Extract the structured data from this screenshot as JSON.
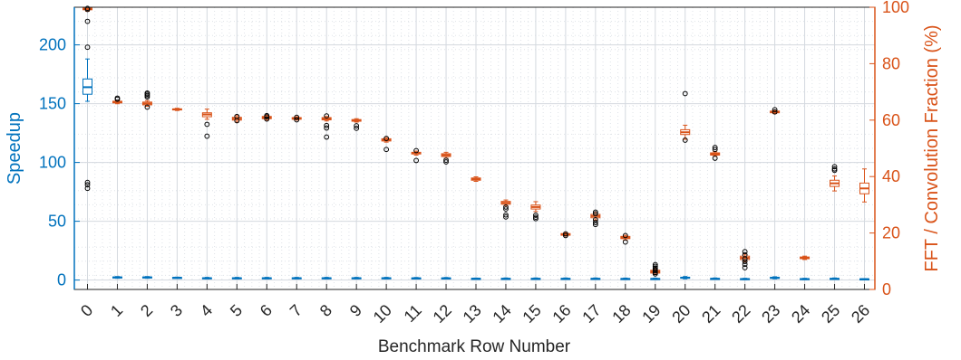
{
  "chart_data": {
    "type": "box",
    "xlabel": "Benchmark Row Number",
    "ylabel_left": "Speedup",
    "ylabel_right": "FFT / Convolution Fraction (%)",
    "categories": [
      "0",
      "1",
      "2",
      "3",
      "4",
      "5",
      "6",
      "7",
      "8",
      "9",
      "10",
      "11",
      "12",
      "13",
      "14",
      "15",
      "16",
      "17",
      "18",
      "19",
      "20",
      "21",
      "22",
      "23",
      "24",
      "25",
      "26"
    ],
    "ylim_left": [
      -8,
      232
    ],
    "ylim_right": [
      0,
      100
    ],
    "yticks_left": [
      "0",
      "50",
      "100",
      "150",
      "200"
    ],
    "yticks_right": [
      "0",
      "20",
      "40",
      "60",
      "80",
      "100"
    ],
    "grid": "major and minor",
    "colors": {
      "speedup": "#0072BD",
      "fraction": "#D95319",
      "outlier": "#000000",
      "grid": "#dfe3e8"
    },
    "series": [
      {
        "name": "Speedup",
        "axis": "left",
        "boxes": [
          {
            "x": "0",
            "min": 152,
            "q1": 158,
            "median": 164,
            "q3": 171,
            "max": 188,
            "outliers": [
              220,
              198,
              83,
              81,
              78
            ]
          },
          {
            "x": "1",
            "min": 1.5,
            "q1": 2,
            "median": 2.3,
            "q3": 2.6,
            "max": 3,
            "outliers": []
          },
          {
            "x": "2",
            "min": 1.5,
            "q1": 2,
            "median": 2.3,
            "q3": 2.6,
            "max": 3,
            "outliers": []
          },
          {
            "x": "3",
            "min": 1.5,
            "q1": 1.8,
            "median": 2,
            "q3": 2.2,
            "max": 2.5,
            "outliers": []
          },
          {
            "x": "4",
            "min": 1,
            "q1": 1.3,
            "median": 1.6,
            "q3": 1.9,
            "max": 2.3,
            "outliers": []
          },
          {
            "x": "5",
            "min": 1,
            "q1": 1.3,
            "median": 1.6,
            "q3": 1.9,
            "max": 2.3,
            "outliers": []
          },
          {
            "x": "6",
            "min": 1,
            "q1": 1.3,
            "median": 1.6,
            "q3": 1.9,
            "max": 2.3,
            "outliers": []
          },
          {
            "x": "7",
            "min": 1,
            "q1": 1.3,
            "median": 1.6,
            "q3": 1.9,
            "max": 2.3,
            "outliers": []
          },
          {
            "x": "8",
            "min": 1,
            "q1": 1.3,
            "median": 1.6,
            "q3": 1.9,
            "max": 2.3,
            "outliers": []
          },
          {
            "x": "9",
            "min": 1,
            "q1": 1.3,
            "median": 1.6,
            "q3": 1.9,
            "max": 2.3,
            "outliers": []
          },
          {
            "x": "10",
            "min": 1,
            "q1": 1.3,
            "median": 1.6,
            "q3": 1.9,
            "max": 2.3,
            "outliers": []
          },
          {
            "x": "11",
            "min": 1,
            "q1": 1.3,
            "median": 1.5,
            "q3": 1.8,
            "max": 2.2,
            "outliers": []
          },
          {
            "x": "12",
            "min": 1,
            "q1": 1.3,
            "median": 1.5,
            "q3": 1.8,
            "max": 2.2,
            "outliers": []
          },
          {
            "x": "13",
            "min": 0.8,
            "q1": 1,
            "median": 1.2,
            "q3": 1.4,
            "max": 1.7,
            "outliers": []
          },
          {
            "x": "14",
            "min": 0.5,
            "q1": 0.8,
            "median": 1.1,
            "q3": 1.4,
            "max": 1.8,
            "outliers": []
          },
          {
            "x": "15",
            "min": 0.5,
            "q1": 0.8,
            "median": 1.1,
            "q3": 1.4,
            "max": 1.8,
            "outliers": []
          },
          {
            "x": "16",
            "min": 0.5,
            "q1": 0.8,
            "median": 1.1,
            "q3": 1.4,
            "max": 1.8,
            "outliers": []
          },
          {
            "x": "17",
            "min": 0.5,
            "q1": 0.8,
            "median": 1.1,
            "q3": 1.4,
            "max": 1.8,
            "outliers": []
          },
          {
            "x": "18",
            "min": 0.4,
            "q1": 0.7,
            "median": 1,
            "q3": 1.3,
            "max": 1.7,
            "outliers": []
          },
          {
            "x": "19",
            "min": 0.4,
            "q1": 0.7,
            "median": 1,
            "q3": 1.3,
            "max": 1.7,
            "outliers": []
          },
          {
            "x": "20",
            "min": 1,
            "q1": 1.6,
            "median": 2,
            "q3": 2.4,
            "max": 3,
            "outliers": []
          },
          {
            "x": "21",
            "min": 0.6,
            "q1": 0.9,
            "median": 1.1,
            "q3": 1.4,
            "max": 1.8,
            "outliers": []
          },
          {
            "x": "22",
            "min": 0.3,
            "q1": 0.6,
            "median": 0.9,
            "q3": 1.2,
            "max": 1.5,
            "outliers": []
          },
          {
            "x": "23",
            "min": 1,
            "q1": 1.5,
            "median": 1.9,
            "q3": 2.3,
            "max": 2.8,
            "outliers": []
          },
          {
            "x": "24",
            "min": 0.3,
            "q1": 0.6,
            "median": 0.9,
            "q3": 1.2,
            "max": 1.5,
            "outliers": []
          },
          {
            "x": "25",
            "min": 0.5,
            "q1": 0.8,
            "median": 1.1,
            "q3": 1.4,
            "max": 1.8,
            "outliers": []
          },
          {
            "x": "26",
            "min": 0.4,
            "q1": 0.6,
            "median": 0.8,
            "q3": 1,
            "max": 1.2,
            "outliers": []
          }
        ]
      },
      {
        "name": "FFT / Convolution Fraction (%)",
        "axis": "right",
        "boxes": [
          {
            "x": "0",
            "min": 98.6,
            "q1": 99.1,
            "median": 99.4,
            "q3": 99.7,
            "max": 100,
            "outliers": [
              99.6,
              99.2
            ]
          },
          {
            "x": "1",
            "min": 65.8,
            "q1": 66.1,
            "median": 66.4,
            "q3": 66.7,
            "max": 67,
            "outliers": [
              67.4,
              67.8
            ]
          },
          {
            "x": "2",
            "min": 64.9,
            "q1": 65.4,
            "median": 65.9,
            "q3": 66.4,
            "max": 66.9,
            "outliers": [
              68.2,
              68.7,
              69.2,
              69.6,
              64.6
            ]
          },
          {
            "x": "3",
            "min": 63.4,
            "q1": 63.6,
            "median": 63.8,
            "q3": 64,
            "max": 64.2,
            "outliers": []
          },
          {
            "x": "4",
            "min": 60.3,
            "q1": 61.2,
            "median": 62,
            "q3": 62.6,
            "max": 63.9,
            "outliers": [
              58.5,
              54.3
            ]
          },
          {
            "x": "5",
            "min": 59.3,
            "q1": 60,
            "median": 60.5,
            "q3": 61,
            "max": 61.6,
            "outliers": [
              61.3,
              59.8
            ]
          },
          {
            "x": "6",
            "min": 60,
            "q1": 60.5,
            "median": 60.9,
            "q3": 61.3,
            "max": 61.7,
            "outliers": [
              61.6,
              61.2,
              60.4
            ]
          },
          {
            "x": "7",
            "min": 60,
            "q1": 60.3,
            "median": 60.6,
            "q3": 60.9,
            "max": 61.2,
            "outliers": [
              61,
              60.1
            ]
          },
          {
            "x": "8",
            "min": 59.7,
            "q1": 60.1,
            "median": 60.5,
            "q3": 60.9,
            "max": 61.3,
            "outliers": [
              61.5,
              58.1,
              57.2,
              54
            ]
          },
          {
            "x": "9",
            "min": 59.3,
            "q1": 59.6,
            "median": 59.9,
            "q3": 60.2,
            "max": 60.5,
            "outliers": [
              58,
              57.1
            ]
          },
          {
            "x": "10",
            "min": 52.2,
            "q1": 52.6,
            "median": 53,
            "q3": 53.4,
            "max": 53.8,
            "outliers": [
              53.5,
              49.6
            ]
          },
          {
            "x": "11",
            "min": 47.6,
            "q1": 48,
            "median": 48.3,
            "q3": 48.6,
            "max": 49,
            "outliers": [
              49.2,
              45.7
            ]
          },
          {
            "x": "12",
            "min": 46.5,
            "q1": 47.1,
            "median": 47.6,
            "q3": 48.1,
            "max": 48.6,
            "outliers": [
              45.8,
              45.2
            ]
          },
          {
            "x": "13",
            "min": 38.3,
            "q1": 38.7,
            "median": 39.1,
            "q3": 39.5,
            "max": 39.9,
            "outliers": []
          },
          {
            "x": "14",
            "min": 29.7,
            "q1": 30.2,
            "median": 30.7,
            "q3": 31.2,
            "max": 31.7,
            "outliers": [
              29.2,
              28.5,
              26.4,
              25.7
            ]
          },
          {
            "x": "15",
            "min": 27.6,
            "q1": 28.5,
            "median": 29.2,
            "q3": 29.9,
            "max": 31.1,
            "outliers": [
              26.3,
              25.6,
              25.1
            ]
          },
          {
            "x": "16",
            "min": 18.9,
            "q1": 19.2,
            "median": 19.5,
            "q3": 19.8,
            "max": 20.1,
            "outliers": [
              19.7,
              19.1
            ]
          },
          {
            "x": "17",
            "min": 24.6,
            "q1": 25.4,
            "median": 26,
            "q3": 26.6,
            "max": 27.4,
            "outliers": [
              27.4,
              26.8,
              24.7,
              23.7,
              23
            ]
          },
          {
            "x": "18",
            "min": 17.5,
            "q1": 18,
            "median": 18.4,
            "q3": 18.8,
            "max": 19.2,
            "outliers": [
              19.1,
              16.8
            ]
          },
          {
            "x": "19",
            "min": 5.3,
            "q1": 5.8,
            "median": 6.3,
            "q3": 6.8,
            "max": 7.5,
            "outliers": [
              8.8,
              8.2,
              7.6,
              7.1,
              6.6,
              6,
              5.5
            ]
          },
          {
            "x": "20",
            "min": 53.2,
            "q1": 54.9,
            "median": 55.7,
            "q3": 56.6,
            "max": 58.2,
            "outliers": [
              69.4,
              52.9
            ]
          },
          {
            "x": "21",
            "min": 47.2,
            "q1": 47.6,
            "median": 48,
            "q3": 48.4,
            "max": 48.8,
            "outliers": [
              50.3,
              49.6,
              46.5
            ]
          },
          {
            "x": "22",
            "min": 9.9,
            "q1": 10.6,
            "median": 11.2,
            "q3": 11.8,
            "max": 12.5,
            "outliers": [
              13.4,
              12.3,
              10.8,
              9.9,
              8.9,
              7.7
            ]
          },
          {
            "x": "23",
            "min": 62.3,
            "q1": 62.6,
            "median": 62.9,
            "q3": 63.2,
            "max": 63.5,
            "outliers": [
              63.7,
              62.9
            ]
          },
          {
            "x": "24",
            "min": 10.6,
            "q1": 10.9,
            "median": 11.2,
            "q3": 11.5,
            "max": 11.8,
            "outliers": []
          },
          {
            "x": "25",
            "min": 34.9,
            "q1": 36.5,
            "median": 37.6,
            "q3": 38.7,
            "max": 40.2,
            "outliers": [
              43.5,
              42.7,
              42.2
            ]
          },
          {
            "x": "26",
            "min": 31,
            "q1": 33.9,
            "median": 35.8,
            "q3": 37.7,
            "max": 42.7,
            "outliers": []
          }
        ]
      }
    ]
  }
}
